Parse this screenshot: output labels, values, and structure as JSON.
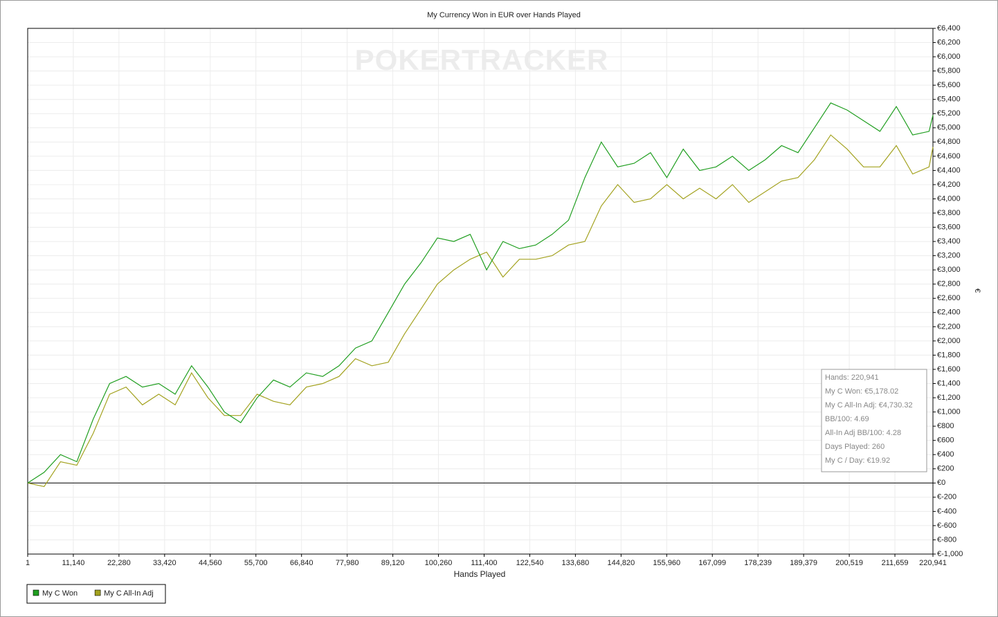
{
  "chart_data": {
    "type": "line",
    "title": "My Currency Won in EUR over Hands Played",
    "watermark": "POKERTRACKER",
    "x_label": "Hands Played",
    "y_label": "€",
    "xlim": [
      1,
      220941
    ],
    "xticks": [
      1,
      {
        "value": 11140,
        "label": "11,140"
      },
      {
        "value": 22280,
        "label": "22,280"
      },
      {
        "value": 33420,
        "label": "33,420"
      },
      {
        "value": 44560,
        "label": "44,560"
      },
      {
        "value": 55700,
        "label": "55,700"
      },
      {
        "value": 66840,
        "label": "66,840"
      },
      {
        "value": 77980,
        "label": "77,980"
      },
      {
        "value": 89120,
        "label": "89,120"
      },
      {
        "value": 100260,
        "label": "100,260"
      },
      {
        "value": 111400,
        "label": "111,400"
      },
      {
        "value": 122540,
        "label": "122,540"
      },
      {
        "value": 133680,
        "label": "133,680"
      },
      {
        "value": 144820,
        "label": "144,820"
      },
      {
        "value": 155960,
        "label": "155,960"
      },
      {
        "value": 167099,
        "label": "167,099"
      },
      {
        "value": 178239,
        "label": "178,239"
      },
      {
        "value": 189379,
        "label": "189,379"
      },
      {
        "value": 200519,
        "label": "200,519"
      },
      {
        "value": 211659,
        "label": "211,659"
      },
      {
        "value": 220941,
        "label": "220,941"
      }
    ],
    "ylim": [
      -1000,
      6400
    ],
    "yticks": [
      {
        "value": -1000,
        "label": "€-1,000"
      },
      {
        "value": -800,
        "label": "€-800"
      },
      {
        "value": -600,
        "label": "€-600"
      },
      {
        "value": -400,
        "label": "€-400"
      },
      {
        "value": -200,
        "label": "€-200"
      },
      {
        "value": 0,
        "label": "€0"
      },
      {
        "value": 200,
        "label": "€200"
      },
      {
        "value": 400,
        "label": "€400"
      },
      {
        "value": 600,
        "label": "€600"
      },
      {
        "value": 800,
        "label": "€800"
      },
      {
        "value": 1000,
        "label": "€1,000"
      },
      {
        "value": 1200,
        "label": "€1,200"
      },
      {
        "value": 1400,
        "label": "€1,400"
      },
      {
        "value": 1600,
        "label": "€1,600"
      },
      {
        "value": 1800,
        "label": "€1,800"
      },
      {
        "value": 2000,
        "label": "€2,000"
      },
      {
        "value": 2200,
        "label": "€2,200"
      },
      {
        "value": 2400,
        "label": "€2,400"
      },
      {
        "value": 2600,
        "label": "€2,600"
      },
      {
        "value": 2800,
        "label": "€2,800"
      },
      {
        "value": 3000,
        "label": "€3,000"
      },
      {
        "value": 3200,
        "label": "€3,200"
      },
      {
        "value": 3400,
        "label": "€3,400"
      },
      {
        "value": 3600,
        "label": "€3,600"
      },
      {
        "value": 3800,
        "label": "€3,800"
      },
      {
        "value": 4000,
        "label": "€4,000"
      },
      {
        "value": 4200,
        "label": "€4,200"
      },
      {
        "value": 4400,
        "label": "€4,400"
      },
      {
        "value": 4600,
        "label": "€4,600"
      },
      {
        "value": 4800,
        "label": "€4,800"
      },
      {
        "value": 5000,
        "label": "€5,000"
      },
      {
        "value": 5200,
        "label": "€5,200"
      },
      {
        "value": 5400,
        "label": "€5,400"
      },
      {
        "value": 5600,
        "label": "€5,600"
      },
      {
        "value": 5800,
        "label": "€5,800"
      },
      {
        "value": 6000,
        "label": "€6,000"
      },
      {
        "value": 6200,
        "label": "€6,200"
      },
      {
        "value": 6400,
        "label": "€6,400"
      }
    ],
    "grid": true,
    "x": [
      1,
      4000,
      8000,
      12000,
      16000,
      20000,
      24000,
      28000,
      32000,
      36000,
      40000,
      44000,
      48000,
      52000,
      56000,
      60000,
      64000,
      68000,
      72000,
      76000,
      80000,
      84000,
      88000,
      92000,
      96000,
      100000,
      104000,
      108000,
      112000,
      116000,
      120000,
      124000,
      128000,
      132000,
      136000,
      140000,
      144000,
      148000,
      152000,
      156000,
      160000,
      164000,
      168000,
      172000,
      176000,
      180000,
      184000,
      188000,
      192000,
      196000,
      200000,
      204000,
      208000,
      212000,
      216000,
      220000,
      220941
    ],
    "series": [
      {
        "name": "My C Won",
        "color": "#1f9e1f",
        "values": [
          0,
          150,
          400,
          300,
          900,
          1400,
          1500,
          1350,
          1400,
          1250,
          1650,
          1350,
          1000,
          850,
          1200,
          1450,
          1350,
          1550,
          1500,
          1650,
          1900,
          2000,
          2400,
          2800,
          3100,
          3450,
          3400,
          3500,
          3000,
          3400,
          3300,
          3350,
          3500,
          3700,
          4300,
          4800,
          4450,
          4500,
          4650,
          4300,
          4700,
          4400,
          4450,
          4600,
          4400,
          4550,
          4750,
          4650,
          5000,
          5350,
          5250,
          5100,
          4950,
          5300,
          4900,
          4950,
          5178
        ]
      },
      {
        "name": "My C All-In Adj",
        "color": "#a3a21f",
        "values": [
          0,
          -50,
          300,
          250,
          700,
          1250,
          1350,
          1100,
          1250,
          1100,
          1550,
          1200,
          950,
          950,
          1250,
          1150,
          1100,
          1350,
          1400,
          1500,
          1750,
          1650,
          1700,
          2100,
          2450,
          2800,
          3000,
          3150,
          3250,
          2900,
          3150,
          3150,
          3200,
          3350,
          3400,
          3900,
          4200,
          3950,
          4000,
          4200,
          4000,
          4150,
          4000,
          4200,
          3950,
          4100,
          4250,
          4300,
          4550,
          4900,
          4700,
          4450,
          4450,
          4750,
          4350,
          4450,
          4730
        ]
      }
    ],
    "stats_box": [
      "Hands: 220,941",
      "My C Won: €5,178.02",
      "My C All-In Adj: €4,730.32",
      "BB/100: 4.69",
      "All-In Adj BB/100: 4.28",
      "Days Played: 260",
      "My C / Day: €19.92"
    ]
  }
}
